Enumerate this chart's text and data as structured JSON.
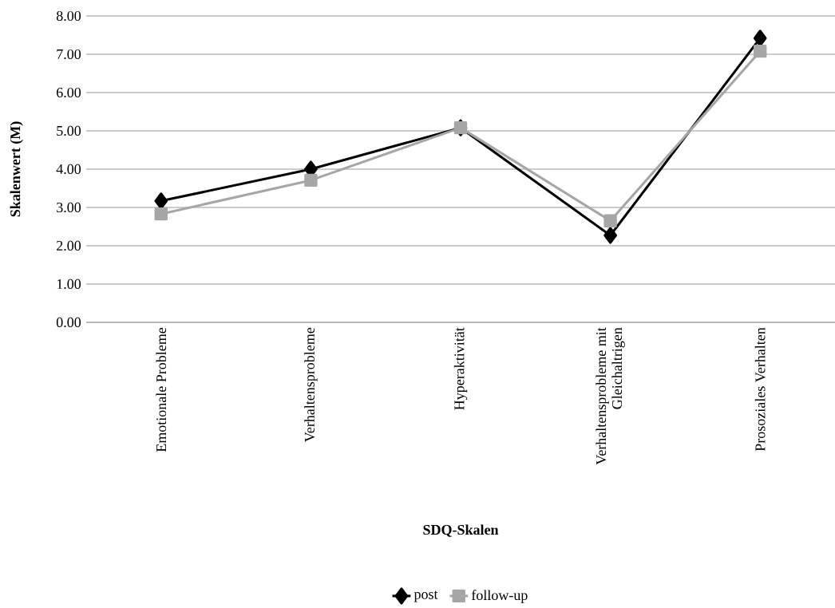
{
  "chart_data": {
    "type": "line",
    "xlabel": "SDQ-Skalen",
    "ylabel": "Skalenwert (M)",
    "categories": [
      "Emotionale Probleme",
      "Verhaltensprobleme",
      "Hyperaktivität",
      "Verhaltensprobleme mit Gleichaltrigen",
      "Prosoziales Verhalten"
    ],
    "series": [
      {
        "name": "post",
        "color": "#000000",
        "marker": "diamond",
        "values": [
          3.17,
          4.0,
          5.08,
          2.27,
          7.42
        ]
      },
      {
        "name": "follow-up",
        "color": "#a6a6a6",
        "marker": "square",
        "values": [
          2.83,
          3.71,
          5.08,
          2.65,
          7.08
        ]
      }
    ],
    "ylim": [
      0,
      8
    ],
    "yticks": [
      {
        "value": 0,
        "label": "0.00"
      },
      {
        "value": 1,
        "label": "1.00"
      },
      {
        "value": 2,
        "label": "2.00"
      },
      {
        "value": 3,
        "label": "3.00"
      },
      {
        "value": 4,
        "label": "4.00"
      },
      {
        "value": 5,
        "label": "5.00"
      },
      {
        "value": 6,
        "label": "6.00"
      },
      {
        "value": 7,
        "label": "7.00"
      },
      {
        "value": 8,
        "label": "8.00"
      }
    ],
    "grid": "y",
    "legend": "bottom"
  }
}
